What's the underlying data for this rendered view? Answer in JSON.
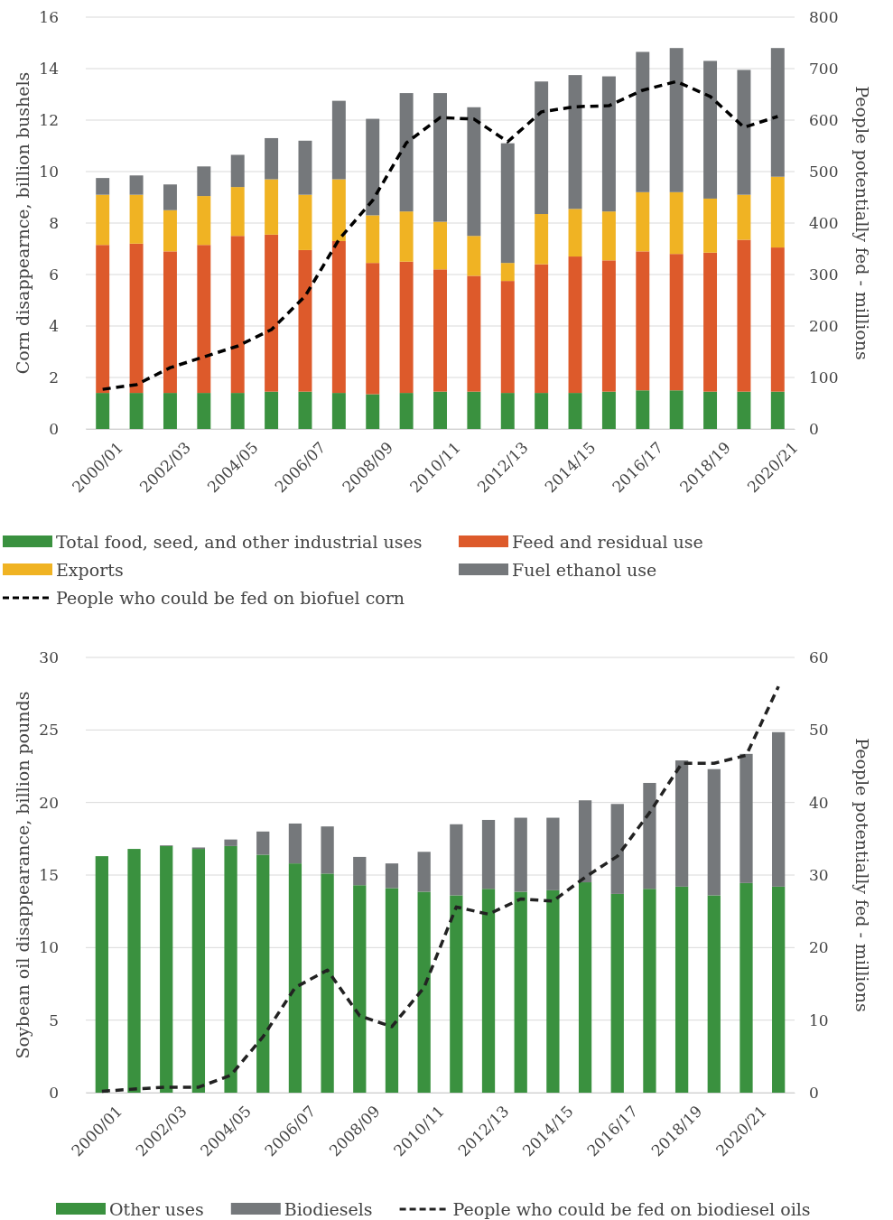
{
  "chart_data": [
    {
      "type": "bar",
      "stacked": true,
      "ylabel": "Corn disappearnce, billion bushels",
      "y2label": "People potentially fed - millions",
      "categories": [
        "2000/01",
        null,
        "2002/03",
        null,
        "2004/05",
        null,
        "2006/07",
        null,
        "2008/09",
        null,
        "2010/11",
        null,
        "2012/13",
        null,
        "2014/15",
        null,
        "2016/17",
        null,
        "2018/19",
        null,
        "2020/21"
      ],
      "series": [
        {
          "name": "Total food, seed, and other industrial uses",
          "color": "#3a913f",
          "values": [
            1.4,
            1.4,
            1.4,
            1.4,
            1.4,
            1.45,
            1.45,
            1.4,
            1.35,
            1.4,
            1.45,
            1.45,
            1.4,
            1.4,
            1.4,
            1.45,
            1.5,
            1.5,
            1.45,
            1.45,
            1.45
          ]
        },
        {
          "name": "Feed and residual use",
          "color": "#dd5a2b",
          "values": [
            5.75,
            5.8,
            5.5,
            5.75,
            6.1,
            6.1,
            5.5,
            5.9,
            5.1,
            5.1,
            4.75,
            4.5,
            4.35,
            5.0,
            5.3,
            5.1,
            5.4,
            5.3,
            5.4,
            5.9,
            5.6
          ]
        },
        {
          "name": "Exports",
          "color": "#f0b323",
          "values": [
            1.95,
            1.9,
            1.6,
            1.9,
            1.9,
            2.15,
            2.15,
            2.4,
            1.85,
            1.95,
            1.85,
            1.55,
            0.7,
            1.95,
            1.85,
            1.9,
            2.3,
            2.4,
            2.1,
            1.75,
            2.75
          ]
        },
        {
          "name": "Fuel ethanol use",
          "color": "#75787b",
          "values": [
            0.65,
            0.75,
            1.0,
            1.15,
            1.25,
            1.6,
            2.1,
            3.05,
            3.75,
            4.6,
            5.0,
            5.0,
            4.65,
            5.15,
            5.2,
            5.25,
            5.45,
            5.6,
            5.35,
            4.85,
            5.0
          ]
        },
        {
          "name": "People who could be fed on biofuel corn",
          "type": "line",
          "axis": "y2",
          "color": "#000000",
          "line_style": "dashed",
          "marker": "none",
          "values": [
            77,
            86,
            119,
            140,
            161,
            193,
            258,
            368,
            444,
            556,
            605,
            602,
            558,
            616,
            626,
            628,
            658,
            675,
            646,
            586,
            607
          ]
        }
      ],
      "ylim": [
        0,
        16
      ],
      "yticks": [
        0,
        2,
        4,
        6,
        8,
        10,
        12,
        14,
        16
      ],
      "y2lim": [
        0,
        800
      ],
      "y2ticks": [
        0,
        100,
        200,
        300,
        400,
        500,
        600,
        700,
        800
      ],
      "grid": "y",
      "legend": "bottom"
    },
    {
      "type": "bar",
      "stacked": true,
      "ylabel": "Soybean oil disappearance, billion pounds",
      "y2label": "People potentially fed - millions",
      "categories": [
        "2000/01",
        null,
        "2002/03",
        null,
        "2004/05",
        null,
        "2006/07",
        null,
        "2008/09",
        null,
        "2010/11",
        null,
        "2012/13",
        null,
        "2014/15",
        null,
        "2016/17",
        null,
        "2018/19",
        null,
        "2020/21",
        null
      ],
      "series": [
        {
          "name": "Other uses",
          "color": "#3a913f",
          "values": [
            16.3,
            16.8,
            17.0,
            16.8,
            17.0,
            16.4,
            15.8,
            15.1,
            14.3,
            14.1,
            13.85,
            13.6,
            14.05,
            13.85,
            13.95,
            14.5,
            13.7,
            14.05,
            14.2,
            13.6,
            14.45,
            14.2
          ]
        },
        {
          "name": "Biodiesels",
          "color": "#75787b",
          "values": [
            0,
            0,
            0.05,
            0.1,
            0.45,
            1.6,
            2.75,
            3.25,
            1.95,
            1.7,
            2.75,
            4.9,
            4.75,
            5.1,
            5.0,
            5.65,
            6.2,
            7.3,
            8.7,
            8.7,
            8.9,
            10.65
          ]
        },
        {
          "name": "People who could be fed on biodiesel oils",
          "type": "line",
          "axis": "y2",
          "color": "#222222",
          "line_style": "dashed",
          "marker": "none",
          "values": [
            0.2,
            0.5,
            0.75,
            0.75,
            2.4,
            7.7,
            14.5,
            16.9,
            10.6,
            9.1,
            14.5,
            25.6,
            24.6,
            26.7,
            26.4,
            29.7,
            32.6,
            38.6,
            45.4,
            45.4,
            46.5,
            56.0
          ]
        }
      ],
      "ylim": [
        0,
        30
      ],
      "yticks": [
        0,
        5,
        10,
        15,
        20,
        25,
        30
      ],
      "y2lim": [
        0,
        60
      ],
      "y2ticks": [
        0,
        10,
        20,
        30,
        40,
        50,
        60
      ],
      "grid": "y",
      "legend": "bottom"
    }
  ]
}
